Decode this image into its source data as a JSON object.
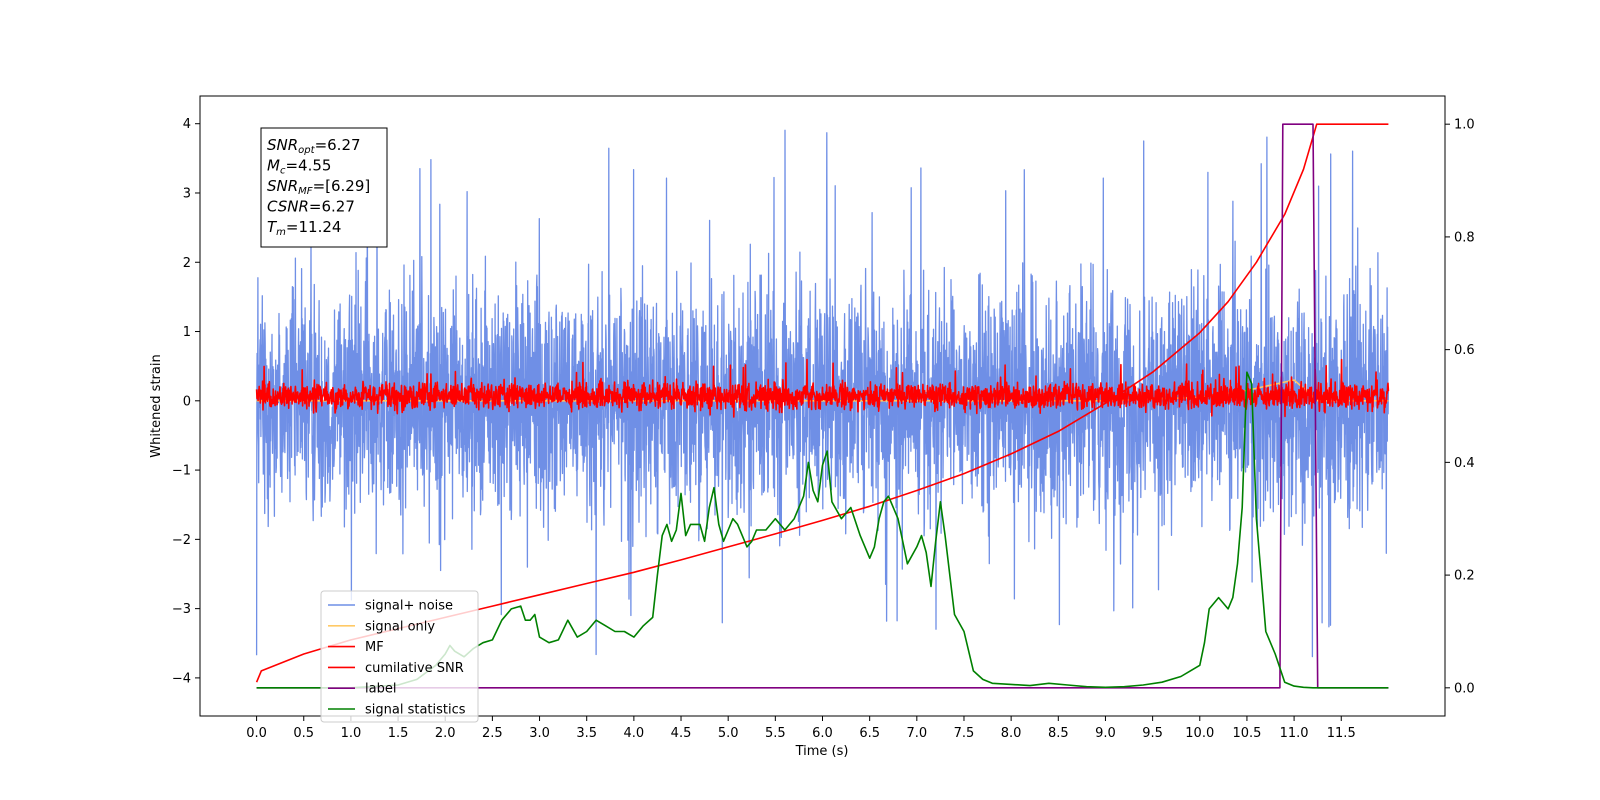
{
  "chart_data": {
    "type": "line",
    "xlabel": "Time (s)",
    "ylabel": "Whitened strain",
    "xlim": [
      -0.6,
      12.6
    ],
    "ylim_left": [
      -4.55,
      4.4
    ],
    "ylim_right": [
      -0.05,
      1.05
    ],
    "x_ticks": [
      "0.0",
      "0.5",
      "1.0",
      "1.5",
      "2.0",
      "2.5",
      "3.0",
      "3.5",
      "4.0",
      "4.5",
      "5.0",
      "5.5",
      "6.0",
      "6.5",
      "7.0",
      "7.5",
      "8.0",
      "8.5",
      "9.0",
      "9.5",
      "10.0",
      "10.5",
      "11.0",
      "11.5"
    ],
    "y_ticks_left": [
      "4",
      "3",
      "2",
      "1",
      "0",
      "−1",
      "−2",
      "−3",
      "−4"
    ],
    "y_ticks_right": [
      "1.0",
      "0.8",
      "0.6",
      "0.4",
      "0.2",
      "0.0"
    ],
    "info_box": [
      {
        "sym": "SNR",
        "sub": "opt",
        "val": "=6.27"
      },
      {
        "sym": "M",
        "sub": "c",
        "val": "=4.55"
      },
      {
        "sym": "SNR",
        "sub": "MF",
        "val": "=[6.29]"
      },
      {
        "sym": "CSNR",
        "sub": "",
        "val": "=6.27"
      },
      {
        "sym": "T",
        "sub": "m",
        "val": "=11.24"
      }
    ],
    "legend": [
      {
        "label": "signal+ noise",
        "color": "#6f8fe6"
      },
      {
        "label": "signal only",
        "color": "#ffc966"
      },
      {
        "label": "MF",
        "color": "#ff0000"
      },
      {
        "label": "cumilative SNR",
        "color": "#ff0000"
      },
      {
        "label": "label",
        "color": "#800080"
      },
      {
        "label": "signal statistics",
        "color": "#008000"
      }
    ],
    "series": [
      {
        "name": "signal+ noise",
        "axis": "left",
        "color": "#6f8fe6",
        "sampled_noise": true,
        "t_range": [
          0.0,
          12.0
        ],
        "core_range": [
          -2.4,
          2.4
        ],
        "peak_range": [
          -3.8,
          3.95
        ]
      },
      {
        "name": "signal only",
        "axis": "left",
        "color": "#ffc966",
        "x": [
          0.0,
          9.0,
          10.0,
          10.5,
          11.0,
          11.25,
          11.5,
          12.0
        ],
        "y": [
          0.0,
          0.0,
          0.05,
          0.15,
          0.3,
          0.0,
          0.0,
          0.0
        ]
      },
      {
        "name": "MF",
        "axis": "left",
        "color": "#ff0000",
        "sampled_noise": true,
        "t_range": [
          0.0,
          12.0
        ],
        "core_range": [
          -0.22,
          0.35
        ],
        "peak_range": [
          -0.25,
          0.6
        ]
      },
      {
        "name": "cumilative SNR",
        "axis": "right",
        "color": "#ff0000",
        "x": [
          0.0,
          0.05,
          0.5,
          1.0,
          1.5,
          2.0,
          2.5,
          3.0,
          3.5,
          4.0,
          4.5,
          5.0,
          5.5,
          6.0,
          6.5,
          7.0,
          7.5,
          8.0,
          8.5,
          9.0,
          9.5,
          10.0,
          10.3,
          10.6,
          10.9,
          11.1,
          11.24,
          11.5,
          12.0
        ],
        "y": [
          0.01,
          0.03,
          0.06,
          0.085,
          0.105,
          0.125,
          0.145,
          0.165,
          0.185,
          0.205,
          0.227,
          0.25,
          0.273,
          0.297,
          0.322,
          0.35,
          0.38,
          0.415,
          0.455,
          0.505,
          0.56,
          0.63,
          0.685,
          0.755,
          0.84,
          0.92,
          1.0,
          1.0,
          1.0
        ]
      },
      {
        "name": "label",
        "axis": "right",
        "color": "#800080",
        "x": [
          0.0,
          10.85,
          10.88,
          11.2,
          11.25,
          12.0
        ],
        "y": [
          0.0,
          0.0,
          1.0,
          1.0,
          0.0,
          0.0
        ]
      },
      {
        "name": "signal statistics",
        "axis": "right",
        "color": "#008000",
        "x": [
          0.0,
          1.0,
          1.5,
          1.7,
          1.9,
          2.0,
          2.05,
          2.1,
          2.2,
          2.3,
          2.4,
          2.5,
          2.6,
          2.7,
          2.8,
          2.85,
          2.9,
          2.95,
          3.0,
          3.1,
          3.2,
          3.3,
          3.4,
          3.5,
          3.6,
          3.7,
          3.8,
          3.9,
          4.0,
          4.1,
          4.2,
          4.25,
          4.3,
          4.35,
          4.4,
          4.45,
          4.5,
          4.55,
          4.6,
          4.7,
          4.75,
          4.8,
          4.85,
          4.9,
          4.95,
          5.0,
          5.05,
          5.1,
          5.2,
          5.25,
          5.3,
          5.4,
          5.5,
          5.6,
          5.7,
          5.8,
          5.85,
          5.9,
          5.95,
          6.0,
          6.05,
          6.1,
          6.2,
          6.3,
          6.4,
          6.5,
          6.55,
          6.6,
          6.65,
          6.7,
          6.8,
          6.9,
          7.0,
          7.05,
          7.1,
          7.15,
          7.2,
          7.25,
          7.3,
          7.4,
          7.5,
          7.6,
          7.7,
          7.8,
          8.0,
          8.2,
          8.4,
          8.6,
          8.8,
          9.0,
          9.2,
          9.4,
          9.6,
          9.8,
          9.9,
          10.0,
          10.05,
          10.1,
          10.2,
          10.3,
          10.35,
          10.4,
          10.45,
          10.5,
          10.55,
          10.6,
          10.65,
          10.7,
          10.8,
          10.9,
          11.0,
          11.1,
          11.2,
          11.3,
          12.0
        ],
        "y": [
          0.0,
          0.0,
          0.005,
          0.015,
          0.04,
          0.06,
          0.075,
          0.065,
          0.055,
          0.07,
          0.08,
          0.085,
          0.12,
          0.14,
          0.145,
          0.12,
          0.12,
          0.13,
          0.09,
          0.08,
          0.085,
          0.12,
          0.09,
          0.1,
          0.12,
          0.11,
          0.1,
          0.1,
          0.09,
          0.11,
          0.125,
          0.2,
          0.27,
          0.29,
          0.26,
          0.28,
          0.345,
          0.27,
          0.29,
          0.29,
          0.26,
          0.32,
          0.355,
          0.29,
          0.26,
          0.28,
          0.3,
          0.29,
          0.25,
          0.26,
          0.28,
          0.28,
          0.3,
          0.28,
          0.3,
          0.34,
          0.4,
          0.35,
          0.33,
          0.395,
          0.42,
          0.33,
          0.3,
          0.32,
          0.27,
          0.23,
          0.25,
          0.3,
          0.33,
          0.34,
          0.3,
          0.22,
          0.25,
          0.27,
          0.24,
          0.18,
          0.26,
          0.33,
          0.27,
          0.13,
          0.1,
          0.03,
          0.015,
          0.008,
          0.006,
          0.004,
          0.008,
          0.005,
          0.002,
          0.001,
          0.002,
          0.005,
          0.01,
          0.02,
          0.03,
          0.04,
          0.08,
          0.14,
          0.16,
          0.14,
          0.16,
          0.22,
          0.32,
          0.56,
          0.54,
          0.3,
          0.2,
          0.1,
          0.06,
          0.01,
          0.003,
          0.001,
          0.0,
          0.0,
          0.0
        ]
      }
    ]
  }
}
